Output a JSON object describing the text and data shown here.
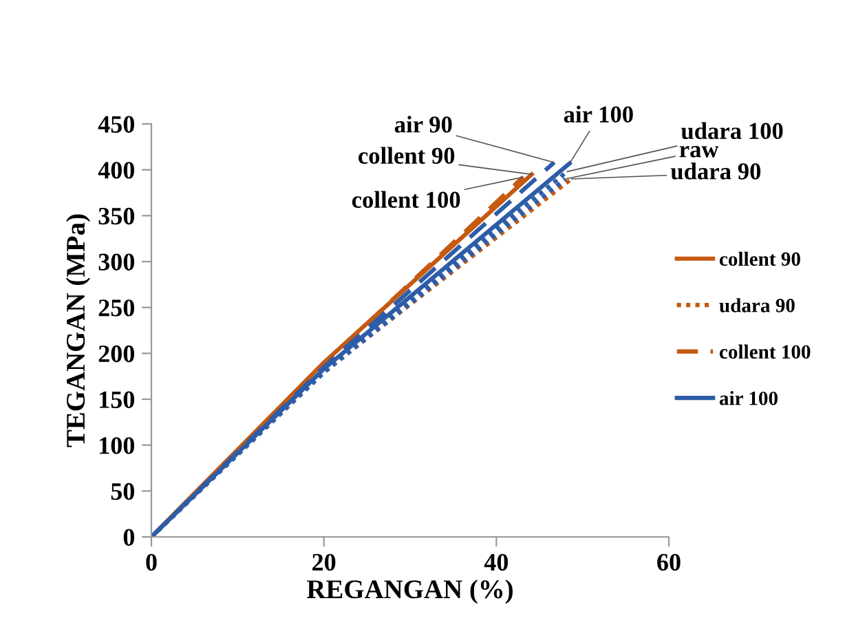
{
  "chart_data": {
    "type": "line",
    "xlabel": "REGANGAN (%)",
    "ylabel": "TEGANGAN (MPa)",
    "xlim": [
      0,
      60
    ],
    "xticks": [
      0,
      20,
      40,
      60
    ],
    "ylim": [
      0,
      450
    ],
    "yticks": [
      0,
      50,
      100,
      150,
      200,
      250,
      300,
      350,
      400,
      450
    ],
    "grid": false,
    "legend": "right",
    "marker": "none",
    "series": [
      {
        "name": "collent 90",
        "color": "#c55a11",
        "line_style": "solid",
        "x": [
          0,
          20,
          44.1
        ],
        "values": [
          0,
          190,
          395
        ]
      },
      {
        "name": "udara 90",
        "color": "#c55a11",
        "line_style": "dotted",
        "x": [
          0,
          20,
          48.7
        ],
        "values": [
          0,
          180,
          390
        ]
      },
      {
        "name": "collent 100",
        "color": "#c55a11",
        "line_style": "dashed",
        "x": [
          0,
          20,
          43.1
        ],
        "values": [
          0,
          188,
          392
        ]
      },
      {
        "name": "air 100",
        "color": "#2e5da8",
        "line_style": "solid",
        "x": [
          0,
          20,
          48.5
        ],
        "values": [
          0,
          183,
          407
        ]
      },
      {
        "color": "#2e5da8",
        "line_style": "dashed",
        "x": [
          0,
          20,
          46.7
        ],
        "values": [
          0,
          185,
          408
        ]
      },
      {
        "color": "#2e5da8",
        "line_style": "dotted",
        "x": [
          0,
          20,
          48.2
        ],
        "values": [
          0,
          181,
          398
        ]
      },
      {
        "color": "#2e5da8",
        "line_style": "dotted",
        "x": [
          0,
          20,
          48.0
        ],
        "values": [
          0,
          179,
          390
        ]
      }
    ],
    "annotations": [
      {
        "text": "air 90",
        "x": 46.7,
        "y": 408
      },
      {
        "text": "air 100",
        "x": 48.5,
        "y": 407
      },
      {
        "text": "udara 100",
        "x": 48.2,
        "y": 398
      },
      {
        "text": "raw",
        "x": 48.0,
        "y": 390
      },
      {
        "text": "udara 90",
        "x": 48.7,
        "y": 390
      },
      {
        "text": "collent 90",
        "x": 44.1,
        "y": 395
      },
      {
        "text": "collent 100",
        "x": 43.1,
        "y": 392
      }
    ]
  }
}
